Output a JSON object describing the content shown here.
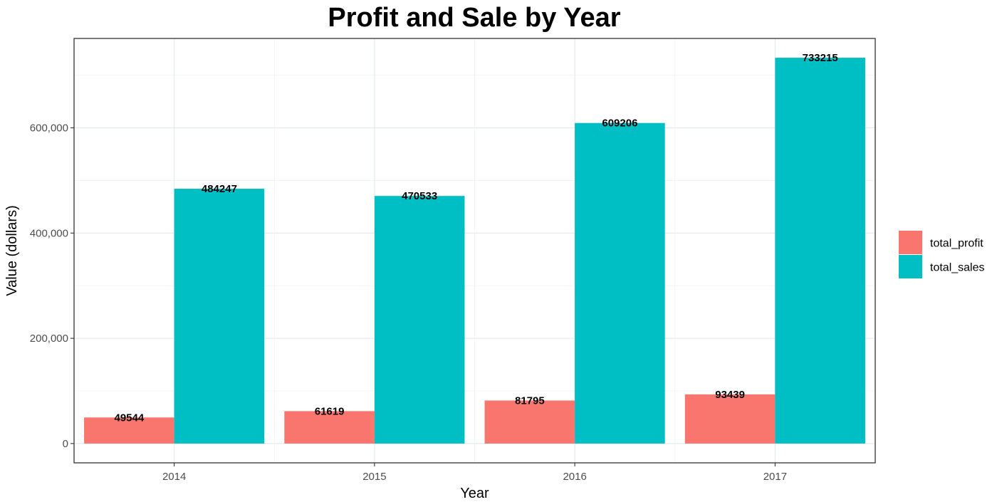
{
  "chart_data": {
    "type": "bar",
    "title": "Profit and Sale by Year",
    "xlabel": "Year",
    "ylabel": "Value (dollars)",
    "categories": [
      "2014",
      "2015",
      "2016",
      "2017"
    ],
    "series": [
      {
        "name": "total_profit",
        "color": "#F8766D",
        "values": [
          49544,
          61619,
          81795,
          93439
        ],
        "labels": [
          "49544",
          "61619",
          "81795",
          "93439"
        ]
      },
      {
        "name": "total_sales",
        "color": "#00BFC4",
        "values": [
          484247,
          470533,
          609206,
          733215
        ],
        "labels": [
          "484247",
          "470533",
          "609206",
          "733215"
        ]
      }
    ],
    "ylim": [
      -36661,
      769876
    ],
    "yticks": [
      0,
      200000,
      400000,
      600000
    ],
    "ytick_labels": [
      "0",
      "200,000",
      "400,000",
      "600,000"
    ],
    "grid": true,
    "legend_position": "right"
  }
}
